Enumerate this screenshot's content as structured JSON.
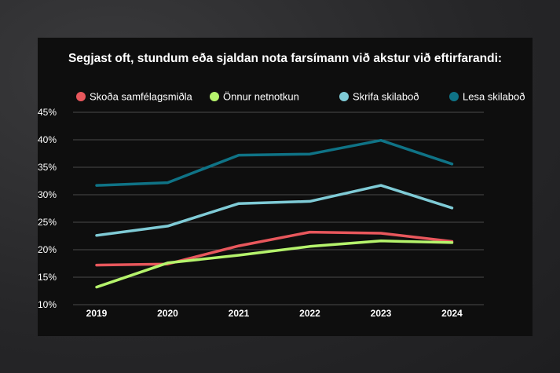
{
  "chart_data": {
    "type": "line",
    "title": "Segjast oft, stundum eða sjaldan nota farsímann við akstur við eftirfarandi:",
    "categories": [
      "2019",
      "2020",
      "2021",
      "2022",
      "2023",
      "2024"
    ],
    "yticks": [
      "45%",
      "40%",
      "35%",
      "30%",
      "25%",
      "20%",
      "15%",
      "10%"
    ],
    "ylim": [
      10,
      45
    ],
    "grid": true,
    "legend_position": "top",
    "series": [
      {
        "name": "Skoða samfélagsmiðla",
        "color": "#e8575c",
        "values": [
          17.2,
          17.4,
          20.7,
          23.2,
          23.0,
          21.5
        ]
      },
      {
        "name": "Önnur netnotkun",
        "color": "#b5f36c",
        "values": [
          13.2,
          17.6,
          19.0,
          20.6,
          21.6,
          21.3
        ]
      },
      {
        "name": "Skrifa skilaboð",
        "color": "#7fcbd6",
        "values": [
          22.6,
          24.3,
          28.4,
          28.8,
          31.7,
          27.6
        ]
      },
      {
        "name": "Lesa skilaboð",
        "color": "#0f7386",
        "values": [
          31.7,
          32.2,
          37.2,
          37.4,
          39.9,
          35.6
        ]
      }
    ]
  }
}
